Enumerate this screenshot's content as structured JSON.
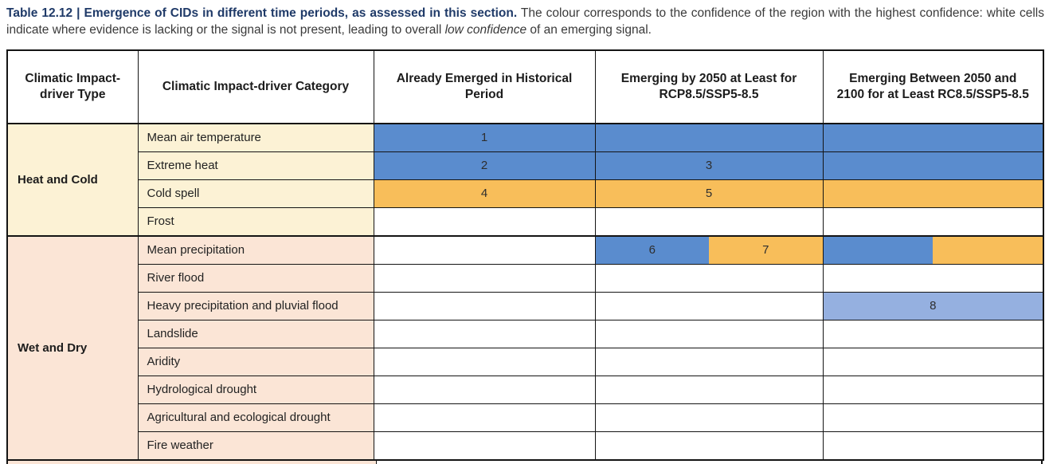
{
  "caption": {
    "title": "Table 12.12 | Emergence of CIDs in different time periods, as assessed in this section.",
    "body_pre_italic": " The colour corresponds to the confidence of the region with the highest confidence: white cells indicate where evidence is lacking or the signal is not present, leading to overall ",
    "italic_phrase": "low confidence",
    "body_post_italic": " of an emerging signal."
  },
  "colors": {
    "blue": "#5a8cce",
    "orange": "#f8be5a",
    "lightblue": "#95b0e0",
    "white": "#ffffff",
    "cream": "#fcf2d5",
    "peach": "#fbe5d6",
    "title_navy": "#1f3a68"
  },
  "table": {
    "headers": [
      "Climatic Impact-driver Type",
      "Climatic Impact-driver Category",
      "Already Emerged in Historical Period",
      "Emerging by 2050 at Least for RCP8.5/SSP5-8.5",
      "Emerging Between 2050 and 2100 for at Least RC8.5/SSP5-8.5"
    ],
    "groups": [
      {
        "type": "Heat and Cold",
        "bg": "cream",
        "rows": [
          {
            "category": "Mean air temperature",
            "cells": [
              {
                "color": "blue",
                "label": "1"
              },
              {
                "color": "blue",
                "label": ""
              },
              {
                "color": "blue",
                "label": ""
              }
            ]
          },
          {
            "category": "Extreme heat",
            "cells": [
              {
                "color": "blue",
                "label": "2"
              },
              {
                "color": "blue",
                "label": "3"
              },
              {
                "color": "blue",
                "label": ""
              }
            ]
          },
          {
            "category": "Cold spell",
            "cells": [
              {
                "color": "orange",
                "label": "4"
              },
              {
                "color": "orange",
                "label": "5"
              },
              {
                "color": "orange",
                "label": ""
              }
            ]
          },
          {
            "category": "Frost",
            "cells": [
              {
                "color": "white",
                "label": ""
              },
              {
                "color": "white",
                "label": ""
              },
              {
                "color": "white",
                "label": ""
              }
            ]
          }
        ]
      },
      {
        "type": "Wet and Dry",
        "bg": "peach",
        "rows": [
          {
            "category": "Mean precipitation",
            "cells": [
              {
                "color": "white",
                "label": ""
              },
              {
                "split": true,
                "halves": [
                  {
                    "color": "blue",
                    "label": "6"
                  },
                  {
                    "color": "orange",
                    "label": "7"
                  }
                ]
              },
              {
                "split": true,
                "halves": [
                  {
                    "color": "blue",
                    "label": ""
                  },
                  {
                    "color": "orange",
                    "label": ""
                  }
                ]
              }
            ]
          },
          {
            "category": "River flood",
            "cells": [
              {
                "color": "white",
                "label": ""
              },
              {
                "color": "white",
                "label": ""
              },
              {
                "color": "white",
                "label": ""
              }
            ]
          },
          {
            "category": "Heavy precipitation and pluvial flood",
            "cells": [
              {
                "color": "white",
                "label": ""
              },
              {
                "color": "white",
                "label": ""
              },
              {
                "color": "lightblue",
                "label": "8"
              }
            ]
          },
          {
            "category": "Landslide",
            "cells": [
              {
                "color": "white",
                "label": ""
              },
              {
                "color": "white",
                "label": ""
              },
              {
                "color": "white",
                "label": ""
              }
            ]
          },
          {
            "category": "Aridity",
            "cells": [
              {
                "color": "white",
                "label": ""
              },
              {
                "color": "white",
                "label": ""
              },
              {
                "color": "white",
                "label": ""
              }
            ]
          },
          {
            "category": "Hydrological drought",
            "cells": [
              {
                "color": "white",
                "label": ""
              },
              {
                "color": "white",
                "label": ""
              },
              {
                "color": "white",
                "label": ""
              }
            ]
          },
          {
            "category": "Agricultural and ecological drought",
            "cells": [
              {
                "color": "white",
                "label": ""
              },
              {
                "color": "white",
                "label": ""
              },
              {
                "color": "white",
                "label": ""
              }
            ]
          },
          {
            "category": "Fire weather",
            "cells": [
              {
                "color": "white",
                "label": ""
              },
              {
                "color": "white",
                "label": ""
              },
              {
                "color": "white",
                "label": ""
              }
            ]
          }
        ]
      }
    ]
  }
}
